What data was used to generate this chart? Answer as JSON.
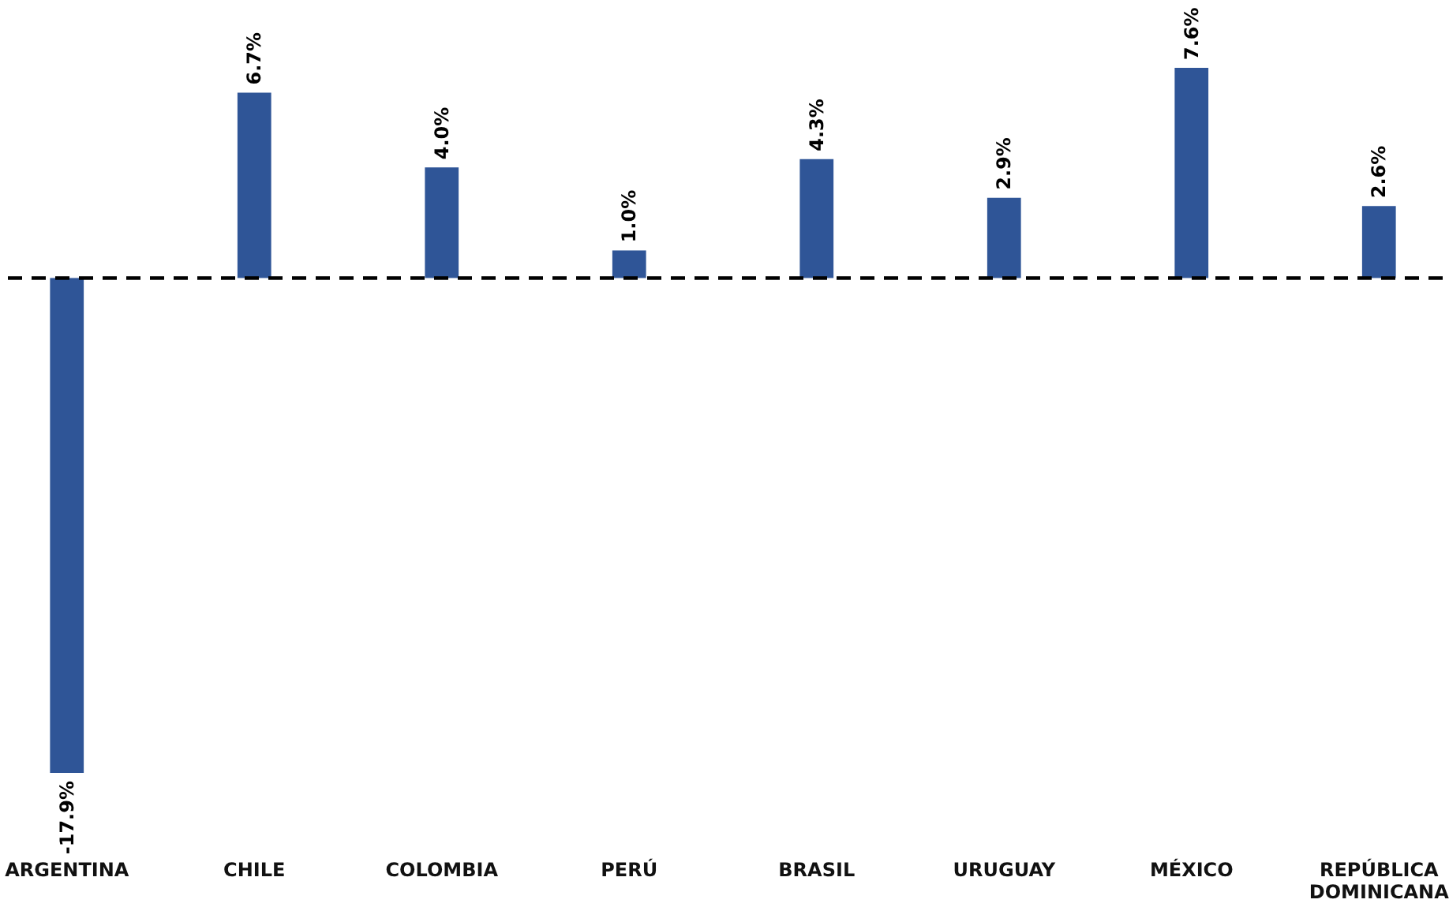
{
  "chart_data": {
    "type": "bar",
    "categories": [
      "ARGENTINA",
      "CHILE",
      "COLOMBIA",
      "PERÚ",
      "BRASIL",
      "URUGUAY",
      "MÉXICO",
      "REPÚBLICA DOMINICANA"
    ],
    "values": [
      -17.9,
      6.7,
      4.0,
      1.0,
      4.3,
      2.9,
      7.6,
      2.6
    ],
    "value_labels": [
      "-17.9%",
      "6.7%",
      "4.0%",
      "1.0%",
      "4.3%",
      "2.9%",
      "7.6%",
      "2.6%"
    ],
    "color": "#2f5597",
    "ref_lines": [
      {
        "axis": "y",
        "value": 0,
        "line_style": "dashed",
        "color": "#000000"
      }
    ],
    "grid": false
  }
}
